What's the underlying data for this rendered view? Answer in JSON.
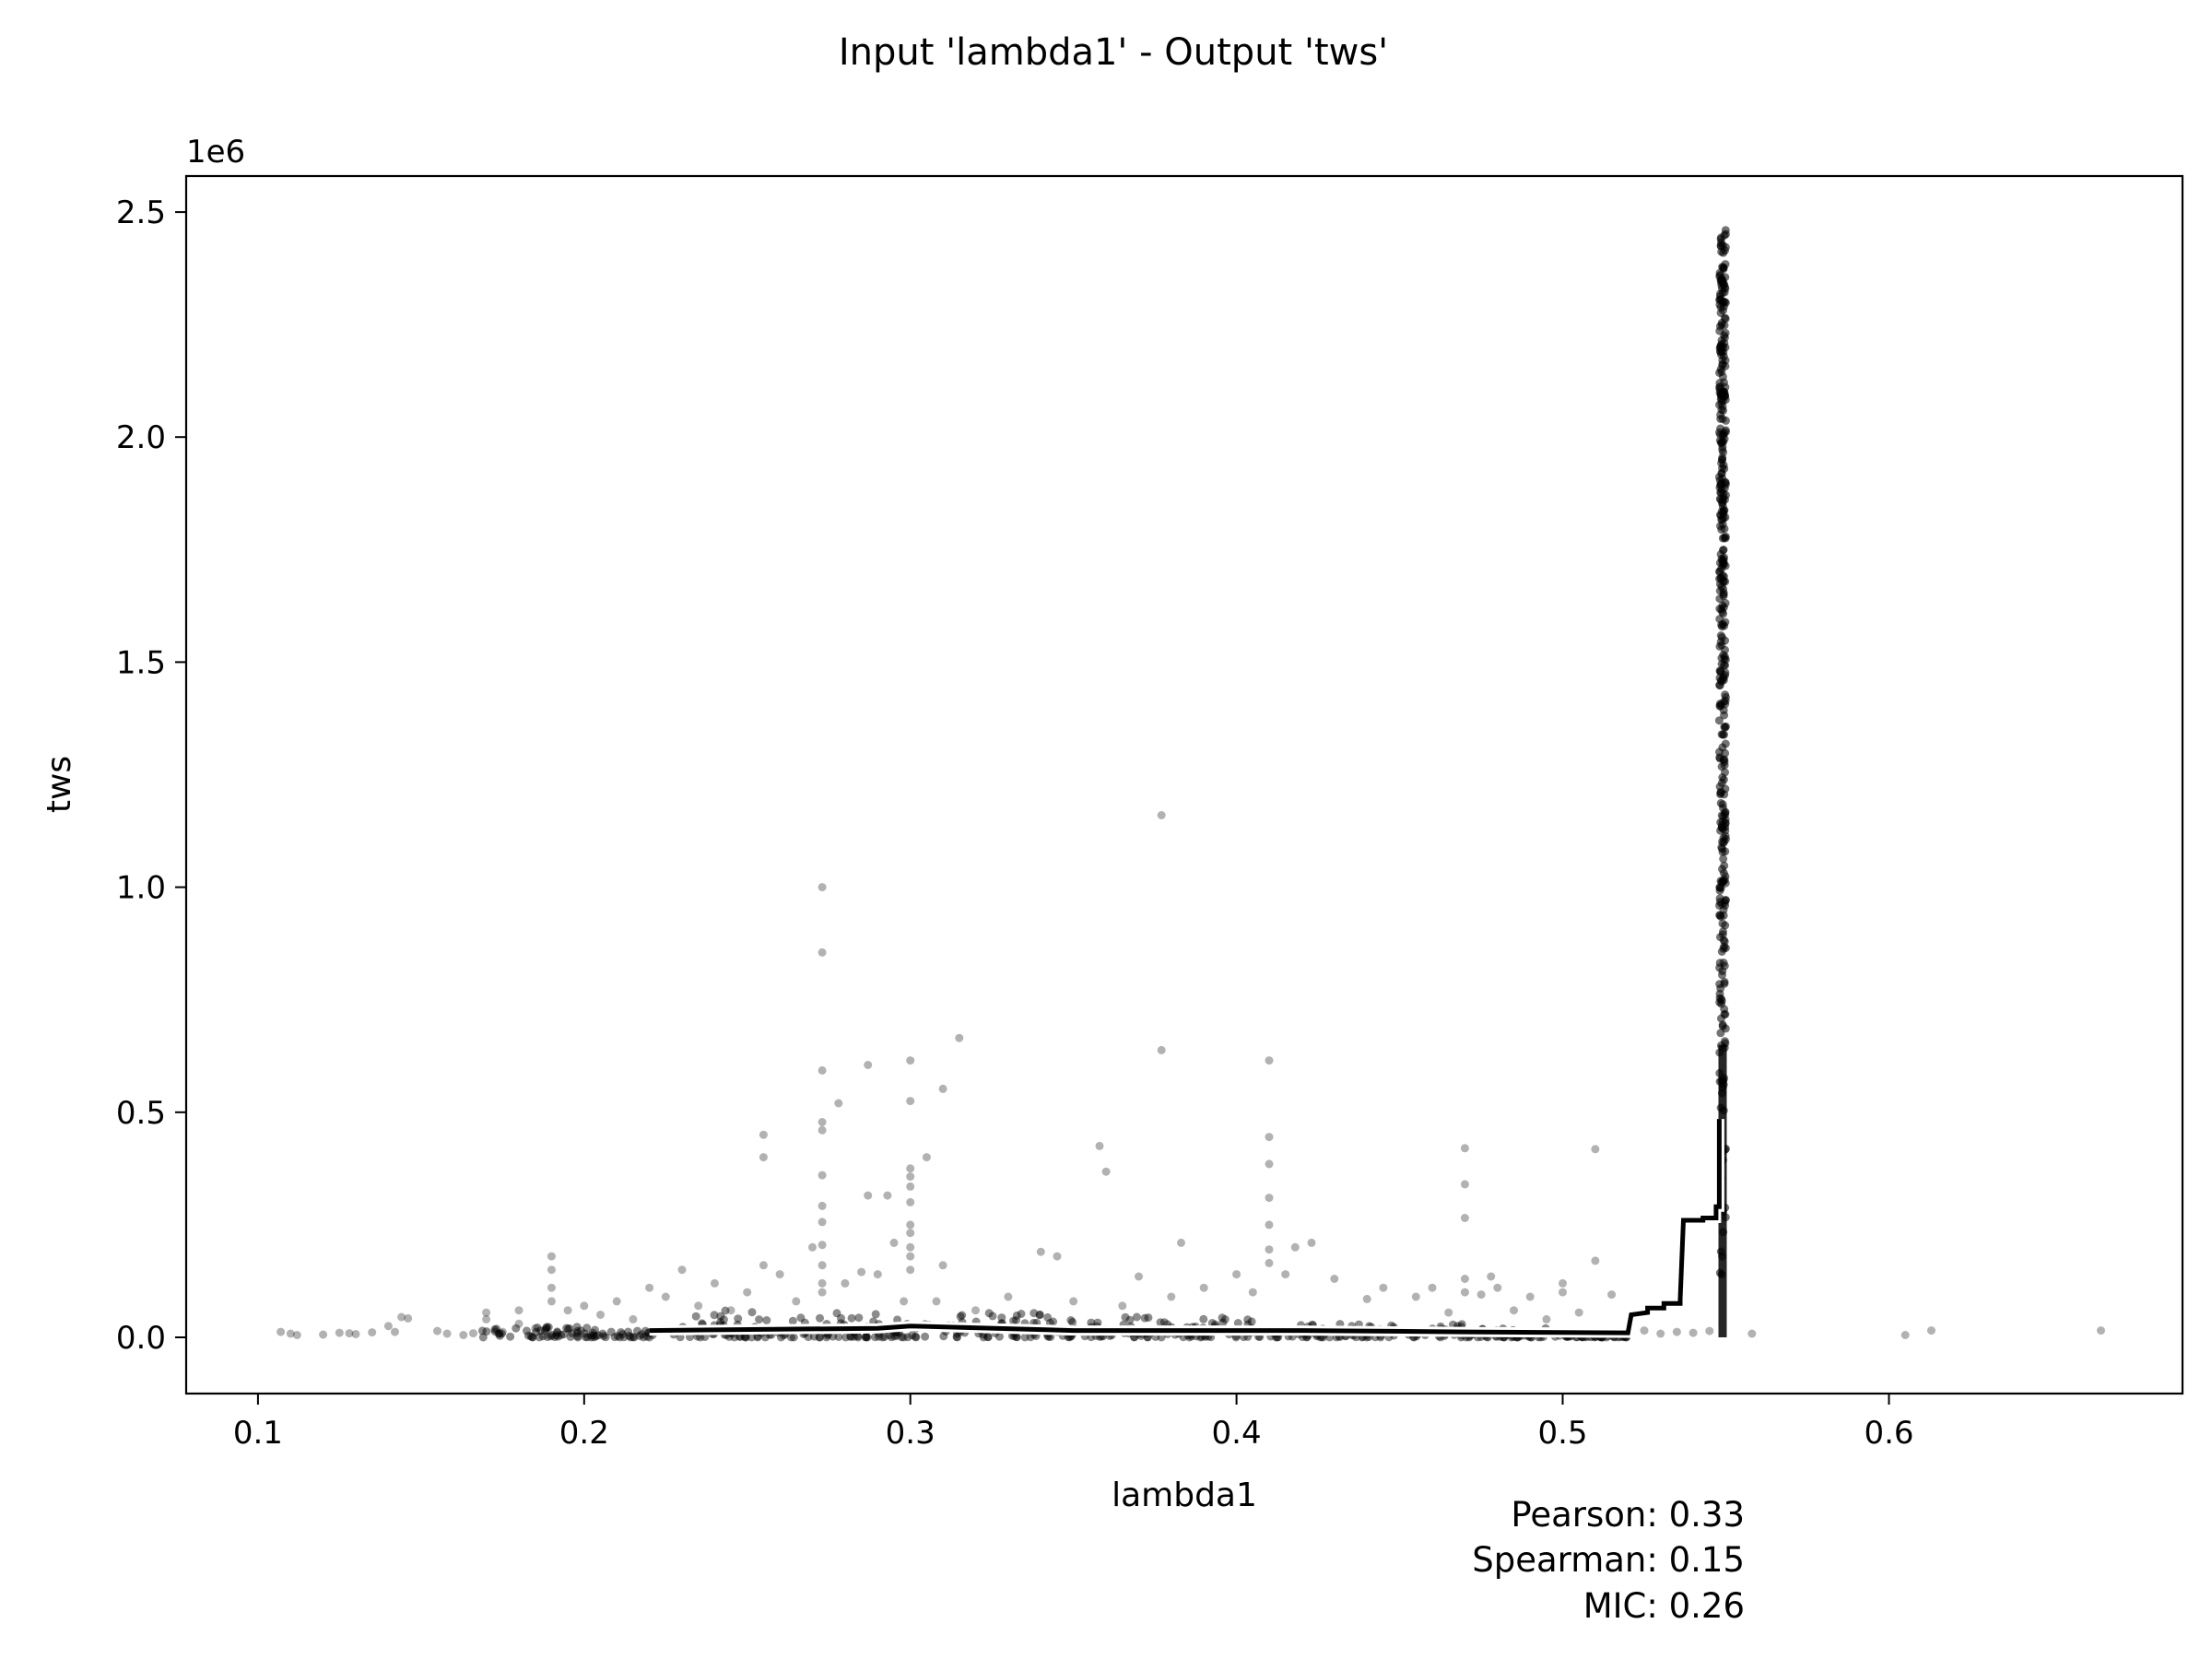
{
  "chart_data": {
    "type": "scatter",
    "title": "Input 'lambda1' - Output 'tws'",
    "xlabel": "lambda1",
    "ylabel": "tws",
    "y_offset_label": "1e6",
    "xlim": [
      0.078,
      0.69
    ],
    "ylim": [
      -125000,
      2580000
    ],
    "x_ticks": [
      0.1,
      0.2,
      0.3,
      0.4,
      0.5,
      0.6
    ],
    "x_tick_labels": [
      "0.1",
      "0.2",
      "0.3",
      "0.4",
      "0.5",
      "0.6"
    ],
    "y_ticks": [
      0,
      500000,
      1000000,
      1500000,
      2000000,
      2500000
    ],
    "y_tick_labels": [
      "0.0",
      "0.5",
      "1.0",
      "1.5",
      "2.0",
      "2.5"
    ],
    "grid": false,
    "marker_color": "#000000",
    "series": [
      {
        "kind": "scatter",
        "points": [
          [
            0.107,
            12000
          ],
          [
            0.11,
            8000
          ],
          [
            0.112,
            5000
          ],
          [
            0.12,
            6000
          ],
          [
            0.125,
            10000
          ],
          [
            0.128,
            9000
          ],
          [
            0.13,
            7000
          ],
          [
            0.135,
            11000
          ],
          [
            0.14,
            25000
          ],
          [
            0.142,
            12000
          ],
          [
            0.144,
            45000
          ],
          [
            0.146,
            42000
          ],
          [
            0.155,
            14000
          ],
          [
            0.158,
            8000
          ],
          [
            0.163,
            5000
          ],
          [
            0.166,
            9000
          ],
          [
            0.17,
            40000
          ],
          [
            0.17,
            55000
          ],
          [
            0.175,
            12000
          ],
          [
            0.18,
            60000
          ],
          [
            0.18,
            30000
          ],
          [
            0.185,
            20000
          ],
          [
            0.19,
            180000
          ],
          [
            0.19,
            150000
          ],
          [
            0.19,
            110000
          ],
          [
            0.19,
            80000
          ],
          [
            0.195,
            60000
          ],
          [
            0.2,
            70000
          ],
          [
            0.205,
            50000
          ],
          [
            0.21,
            80000
          ],
          [
            0.215,
            40000
          ],
          [
            0.22,
            110000
          ],
          [
            0.225,
            90000
          ],
          [
            0.23,
            150000
          ],
          [
            0.235,
            70000
          ],
          [
            0.24,
            120000
          ],
          [
            0.245,
            60000
          ],
          [
            0.25,
            100000
          ],
          [
            0.255,
            450000
          ],
          [
            0.255,
            400000
          ],
          [
            0.255,
            160000
          ],
          [
            0.26,
            140000
          ],
          [
            0.265,
            80000
          ],
          [
            0.27,
            200000
          ],
          [
            0.273,
            1000000
          ],
          [
            0.273,
            855000
          ],
          [
            0.273,
            593000
          ],
          [
            0.273,
            478000
          ],
          [
            0.273,
            460000
          ],
          [
            0.273,
            360000
          ],
          [
            0.273,
            292000
          ],
          [
            0.273,
            256000
          ],
          [
            0.273,
            205000
          ],
          [
            0.273,
            160000
          ],
          [
            0.273,
            120000
          ],
          [
            0.273,
            100000
          ],
          [
            0.278,
            520000
          ],
          [
            0.28,
            120000
          ],
          [
            0.285,
            145000
          ],
          [
            0.287,
            605000
          ],
          [
            0.287,
            315000
          ],
          [
            0.29,
            140000
          ],
          [
            0.293,
            315000
          ],
          [
            0.295,
            210000
          ],
          [
            0.298,
            80000
          ],
          [
            0.3,
            615000
          ],
          [
            0.3,
            525000
          ],
          [
            0.3,
            375000
          ],
          [
            0.3,
            357000
          ],
          [
            0.3,
            335000
          ],
          [
            0.3,
            300000
          ],
          [
            0.3,
            250000
          ],
          [
            0.3,
            232000
          ],
          [
            0.3,
            200000
          ],
          [
            0.3,
            180000
          ],
          [
            0.3,
            150000
          ],
          [
            0.305,
            400000
          ],
          [
            0.308,
            80000
          ],
          [
            0.31,
            552000
          ],
          [
            0.31,
            160000
          ],
          [
            0.315,
            665000
          ],
          [
            0.32,
            60000
          ],
          [
            0.33,
            90000
          ],
          [
            0.34,
            190000
          ],
          [
            0.345,
            180000
          ],
          [
            0.35,
            80000
          ],
          [
            0.358,
            425000
          ],
          [
            0.36,
            368000
          ],
          [
            0.365,
            70000
          ],
          [
            0.37,
            135000
          ],
          [
            0.377,
            1160000
          ],
          [
            0.377,
            638000
          ],
          [
            0.38,
            90000
          ],
          [
            0.383,
            210000
          ],
          [
            0.39,
            110000
          ],
          [
            0.4,
            140000
          ],
          [
            0.405,
            100000
          ],
          [
            0.41,
            615000
          ],
          [
            0.41,
            445000
          ],
          [
            0.41,
            385000
          ],
          [
            0.41,
            310000
          ],
          [
            0.41,
            250000
          ],
          [
            0.41,
            195000
          ],
          [
            0.41,
            165000
          ],
          [
            0.415,
            140000
          ],
          [
            0.418,
            200000
          ],
          [
            0.423,
            210000
          ],
          [
            0.43,
            130000
          ],
          [
            0.44,
            85000
          ],
          [
            0.445,
            110000
          ],
          [
            0.455,
            90000
          ],
          [
            0.46,
            110000
          ],
          [
            0.465,
            55000
          ],
          [
            0.47,
            420000
          ],
          [
            0.47,
            340000
          ],
          [
            0.47,
            265000
          ],
          [
            0.47,
            130000
          ],
          [
            0.47,
            100000
          ],
          [
            0.475,
            95000
          ],
          [
            0.478,
            135000
          ],
          [
            0.48,
            110000
          ],
          [
            0.485,
            60000
          ],
          [
            0.49,
            90000
          ],
          [
            0.495,
            40000
          ],
          [
            0.5,
            120000
          ],
          [
            0.5,
            100000
          ],
          [
            0.505,
            55000
          ],
          [
            0.51,
            418000
          ],
          [
            0.51,
            170000
          ],
          [
            0.515,
            95000
          ],
          [
            0.52,
            10000
          ],
          [
            0.525,
            15000
          ],
          [
            0.53,
            8000
          ],
          [
            0.535,
            12000
          ],
          [
            0.54,
            10000
          ],
          [
            0.545,
            14000
          ],
          [
            0.558,
            8000
          ],
          [
            0.605,
            5000
          ],
          [
            0.613,
            15000
          ],
          [
            0.665,
            15000
          ]
        ]
      },
      {
        "kind": "dense-band",
        "segments": [
          [
            0.168,
            0.22,
            25000
          ],
          [
            0.22,
            0.3,
            60000
          ],
          [
            0.3,
            0.35,
            55000
          ],
          [
            0.35,
            0.41,
            45000
          ],
          [
            0.41,
            0.47,
            30000
          ],
          [
            0.47,
            0.5,
            20000
          ],
          [
            0.5,
            0.52,
            12000
          ]
        ]
      },
      {
        "kind": "dense-column",
        "x": 0.549,
        "ymin": 0,
        "ymax": 2460000
      },
      {
        "kind": "step-line",
        "points": [
          [
            0.22,
            15000
          ],
          [
            0.29,
            20000
          ],
          [
            0.3,
            25000
          ],
          [
            0.35,
            15000
          ],
          [
            0.42,
            15000
          ],
          [
            0.47,
            12000
          ],
          [
            0.52,
            10000
          ],
          [
            0.521,
            50000
          ],
          [
            0.526,
            55000
          ],
          [
            0.526,
            65000
          ],
          [
            0.531,
            65000
          ],
          [
            0.531,
            75000
          ],
          [
            0.536,
            75000
          ],
          [
            0.536,
            85000
          ],
          [
            0.537,
            260000
          ],
          [
            0.543,
            260000
          ],
          [
            0.543,
            265000
          ],
          [
            0.547,
            265000
          ],
          [
            0.547,
            290000
          ],
          [
            0.548,
            290000
          ],
          [
            0.548,
            485000
          ]
        ]
      }
    ]
  },
  "stats": {
    "pearson": "Pearson: 0.33",
    "spearman": "Spearman: 0.15",
    "mic": "MIC: 0.26"
  }
}
